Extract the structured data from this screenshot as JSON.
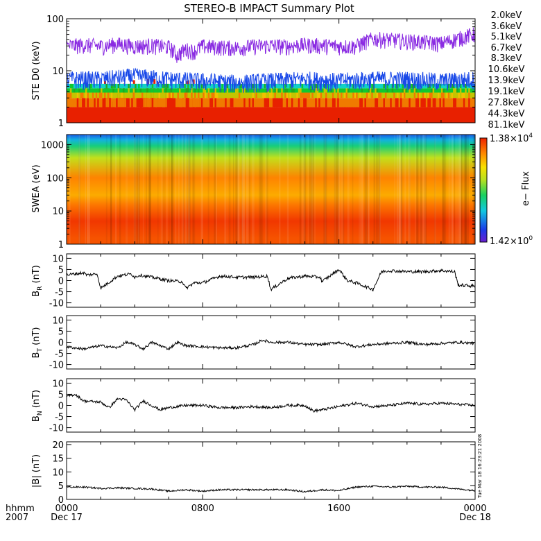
{
  "chart_data": {
    "title": "STEREO-B IMPACT Summary Plot",
    "x_axis": {
      "corner_labels": [
        "hhmm",
        "2007"
      ],
      "ticks": [
        {
          "hour": 0,
          "top": "0000",
          "bottom": "Dec 17"
        },
        {
          "hour": 8,
          "top": "0800",
          "bottom": ""
        },
        {
          "hour": 16,
          "top": "1600",
          "bottom": ""
        },
        {
          "hour": 24,
          "top": "0000",
          "bottom": "Dec 18"
        }
      ],
      "range_hours": [
        0,
        24
      ]
    },
    "timestamp": "Tue Mar 18 16:23:21 2008",
    "panels": [
      {
        "id": "ste",
        "type": "line",
        "ylabel": "STE D0 (keV)",
        "yscale": "log",
        "ylim": [
          1,
          100
        ],
        "yticks": [
          "1",
          "10",
          "100"
        ],
        "legend": [
          {
            "label": "2.0keV",
            "color": "#8a2be2"
          },
          {
            "label": "3.6keV",
            "color": "#2a1aa8"
          },
          {
            "label": "5.1keV",
            "color": "#1848e8"
          },
          {
            "label": "6.7keV",
            "color": "#14a0d8"
          },
          {
            "label": "8.3keV",
            "color": "#12d2c4"
          },
          {
            "label": "10.6keV",
            "color": "#10c830"
          },
          {
            "label": "13.9keV",
            "color": "#1eaa22"
          },
          {
            "label": "19.1keV",
            "color": "#c4c400"
          },
          {
            "label": "27.8keV",
            "color": "#f0c000"
          },
          {
            "label": "44.3keV",
            "color": "#f07a00"
          },
          {
            "label": "81.1keV",
            "color": "#e82000"
          }
        ],
        "series": [
          {
            "label": "2.0keV",
            "color": "#8a2be2",
            "x": [
              0,
              1,
              2,
              3,
              4,
              5,
              6,
              6.5,
              7,
              7.5,
              8,
              9,
              10,
              11,
              12,
              13,
              14,
              15,
              16,
              17,
              18,
              19,
              20,
              21,
              22,
              23,
              24
            ],
            "values": [
              30,
              32,
              30,
              33,
              30,
              31,
              29,
              20,
              26,
              24,
              30,
              29,
              28,
              30,
              31,
              30,
              32,
              31,
              30,
              30,
              42,
              40,
              38,
              36,
              34,
              42,
              52
            ]
          },
          {
            "label": "5.1keV",
            "color": "#1848e8",
            "x": [
              0,
              2,
              4,
              6,
              8,
              10,
              12,
              14,
              16,
              18,
              20,
              22,
              24
            ],
            "values": [
              7,
              7,
              8,
              7,
              6.5,
              6,
              6.5,
              7,
              6.5,
              7,
              7,
              6.5,
              7
            ]
          }
        ]
      },
      {
        "id": "swea",
        "type": "heatmap",
        "ylabel": "SWEA (eV)",
        "yscale": "log",
        "ylim": [
          1,
          2000
        ],
        "yticks": [
          "1",
          "10",
          "100",
          "1000"
        ],
        "colorbar": {
          "label": "e− Flux",
          "max_mantissa": "1.38",
          "max_exp": "4",
          "min_mantissa": "1.42",
          "min_exp": "0",
          "times": "×10"
        },
        "profile": [
          {
            "energy_ev": 1.5,
            "level": 0.93
          },
          {
            "energy_ev": 5,
            "level": 0.97
          },
          {
            "energy_ev": 15,
            "level": 0.88
          },
          {
            "energy_ev": 30,
            "level": 0.8
          },
          {
            "energy_ev": 100,
            "level": 0.86
          },
          {
            "energy_ev": 400,
            "level": 0.62
          },
          {
            "energy_ev": 900,
            "level": 0.42
          },
          {
            "energy_ev": 1400,
            "level": 0.27
          },
          {
            "energy_ev": 2000,
            "level": 0.16
          }
        ]
      },
      {
        "id": "br",
        "type": "line",
        "ylabel_main": "B",
        "ylabel_sub": "R",
        "ylabel_unit": " (nT)",
        "ylim": [
          -12,
          12
        ],
        "yticks": [
          10,
          5,
          0,
          -5,
          -10
        ],
        "x": [
          0,
          1,
          1.2,
          1.8,
          2,
          3,
          3.8,
          4,
          4.3,
          5,
          6,
          6.8,
          7,
          7.5,
          8,
          9,
          10,
          11,
          11.8,
          12,
          13,
          14,
          14.9,
          15,
          16,
          16.5,
          17,
          18,
          18.5,
          19,
          20,
          21,
          22,
          22.8,
          23,
          24
        ],
        "values": [
          2.5,
          3.5,
          2.5,
          3,
          -3.5,
          2,
          3,
          1.5,
          2.5,
          1.5,
          0,
          -0.5,
          -3.5,
          -1,
          -1,
          2,
          1.5,
          1.5,
          2,
          -4,
          1,
          2,
          1.5,
          -0.5,
          5,
          0,
          -1,
          -4,
          4,
          4.5,
          4,
          4,
          4.5,
          4,
          -2,
          -2.5
        ]
      },
      {
        "id": "bt",
        "type": "line",
        "ylabel_main": "B",
        "ylabel_sub": "T",
        "ylabel_unit": " (nT)",
        "ylim": [
          -12,
          12
        ],
        "yticks": [
          10,
          5,
          0,
          -5,
          -10
        ],
        "x": [
          0,
          1,
          2,
          3,
          3.5,
          4,
          4.5,
          5,
          6,
          6.5,
          7,
          8,
          9,
          10,
          11,
          11.5,
          12,
          13,
          14,
          15,
          16,
          16.5,
          17,
          18,
          19,
          20,
          21,
          22,
          23,
          24
        ],
        "values": [
          -2,
          -3,
          -1.5,
          -2.5,
          0,
          -1,
          -3,
          0,
          -3,
          0,
          -1.5,
          -2,
          -2.5,
          -2.5,
          -1,
          1,
          0,
          0,
          -1,
          -1,
          0,
          -1,
          -2,
          -1,
          -0.5,
          0,
          -1,
          -0.5,
          0,
          -0.5
        ]
      },
      {
        "id": "bn",
        "type": "line",
        "ylabel_main": "B",
        "ylabel_sub": "N",
        "ylabel_unit": " (nT)",
        "ylim": [
          -12,
          12
        ],
        "yticks": [
          10,
          5,
          0,
          -5,
          -10
        ],
        "x": [
          0,
          0.5,
          1,
          2,
          2.5,
          3,
          3.5,
          4,
          4.5,
          5,
          5.5,
          6,
          7,
          8,
          9,
          10,
          11,
          12,
          13,
          14,
          14.5,
          15,
          16,
          17,
          18,
          19,
          20,
          21,
          22,
          23,
          24
        ],
        "values": [
          4,
          5,
          2,
          1.5,
          -1,
          3,
          2.5,
          -2,
          2,
          0,
          -2,
          -1,
          0,
          0,
          -1,
          -1,
          -0.5,
          -1,
          0,
          0,
          -2.5,
          -2,
          -0.5,
          1,
          -0.5,
          0,
          1,
          0.5,
          1,
          0.5,
          0
        ]
      },
      {
        "id": "btot",
        "type": "line",
        "ylabel": "|B| (nT)",
        "ylim": [
          0,
          21
        ],
        "yticks": [
          20,
          15,
          10,
          5,
          0
        ],
        "x": [
          0,
          1,
          2,
          3,
          4,
          5,
          6,
          7,
          8,
          9,
          10,
          11,
          12,
          13,
          14,
          15,
          16,
          17,
          18,
          19,
          20,
          21,
          22,
          23,
          24
        ],
        "values": [
          4.5,
          4.5,
          4,
          4.2,
          4,
          3.8,
          3,
          3.5,
          3,
          3.5,
          3.5,
          3.5,
          3.5,
          3.5,
          2.8,
          3.5,
          3.2,
          4.5,
          4.8,
          4.5,
          4.8,
          4.5,
          4.5,
          3.8,
          3.2
        ]
      }
    ]
  }
}
